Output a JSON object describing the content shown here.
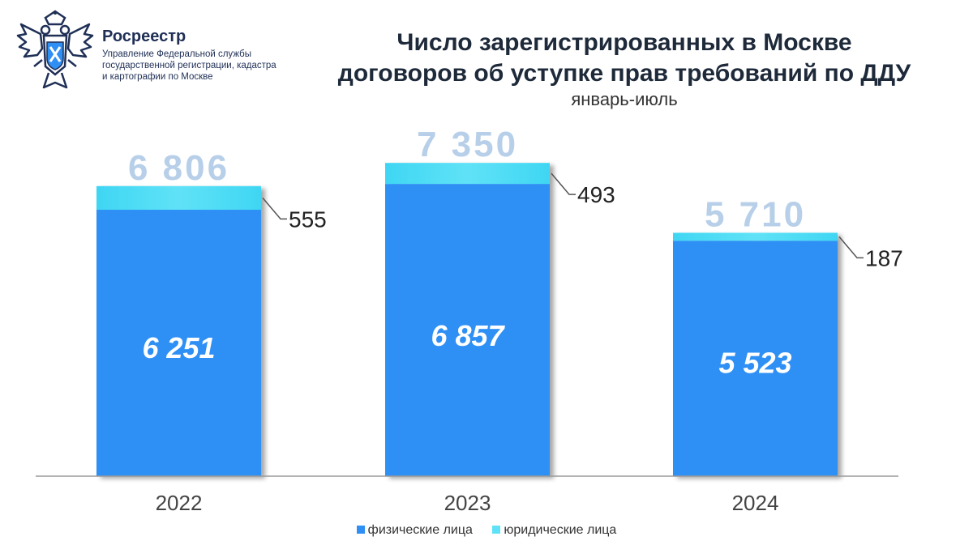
{
  "header": {
    "org_name": "Росреестр",
    "org_desc": "Управление Федеральной службы государственной регистрации, кадастра и картографии по Москве",
    "title_line1": "Число зарегистрированных в Москве",
    "title_line2": "договоров об уступке прав требований по ДДУ",
    "subtitle": "январь-июль"
  },
  "colors": {
    "individuals": "#2f8ff5",
    "legal": "#5fe2f7",
    "total_label": "#b7cfe8",
    "axis": "#9a9a9a"
  },
  "chart_data": {
    "type": "bar",
    "stacked": true,
    "categories": [
      "2022",
      "2023",
      "2024"
    ],
    "series": [
      {
        "name": "физические лица",
        "values": [
          6251,
          6857,
          5523
        ]
      },
      {
        "name": "юридические лица",
        "values": [
          555,
          493,
          187
        ]
      }
    ],
    "totals": [
      6806,
      7350,
      5710
    ],
    "value_labels_individuals": [
      "6 251",
      "6 857",
      "5 523"
    ],
    "value_labels_legal": [
      "555",
      "493",
      "187"
    ],
    "total_labels": [
      "6 806",
      "7 350",
      "5 710"
    ],
    "legend_position": "bottom",
    "grid": false
  }
}
